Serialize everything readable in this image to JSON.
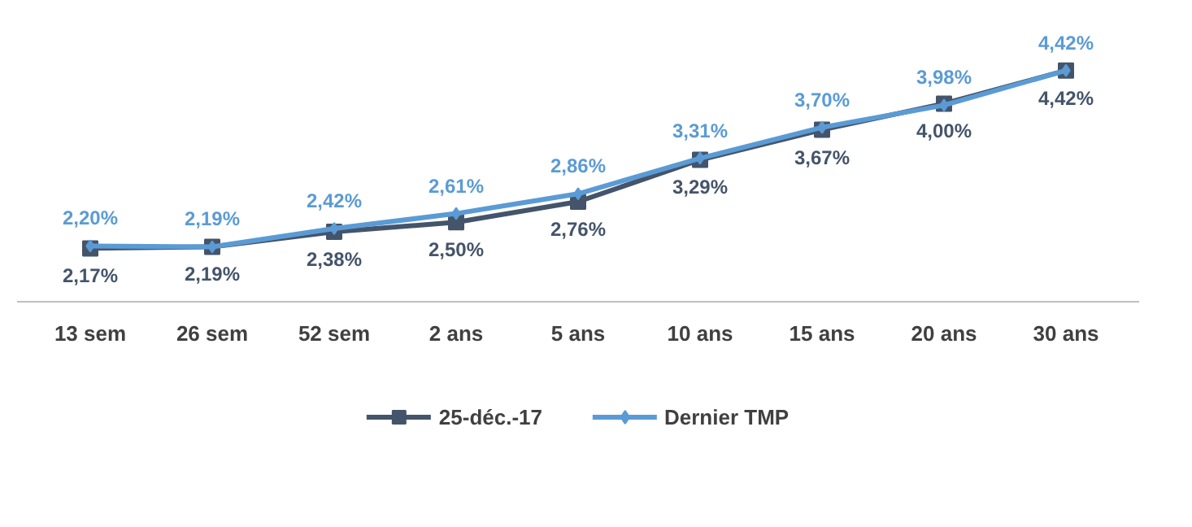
{
  "chart_data": {
    "type": "line",
    "categories": [
      "13 sem",
      "26 sem",
      "52 sem",
      "2 ans",
      "5 ans",
      "10 ans",
      "15 ans",
      "20 ans",
      "30 ans"
    ],
    "series": [
      {
        "name": "25-déc.-17",
        "color": "#44546a",
        "marker": "square",
        "values": [
          2.17,
          2.19,
          2.38,
          2.5,
          2.76,
          3.29,
          3.67,
          4.0,
          4.42
        ],
        "value_labels": [
          "2,17%",
          "2,19%",
          "2,38%",
          "2,50%",
          "2,76%",
          "3,29%",
          "3,67%",
          "4,00%",
          "4,42%"
        ]
      },
      {
        "name": "Dernier TMP",
        "color": "#5b9bd5",
        "marker": "diamond",
        "values": [
          2.2,
          2.19,
          2.42,
          2.61,
          2.86,
          3.31,
          3.7,
          3.98,
          4.42
        ],
        "value_labels": [
          "2,20%",
          "2,19%",
          "2,42%",
          "2,61%",
          "2,86%",
          "3,31%",
          "3,70%",
          "3,98%",
          "4,42%"
        ]
      }
    ],
    "legend": "bottom",
    "line_style": "solid",
    "tick_labels": "x"
  }
}
